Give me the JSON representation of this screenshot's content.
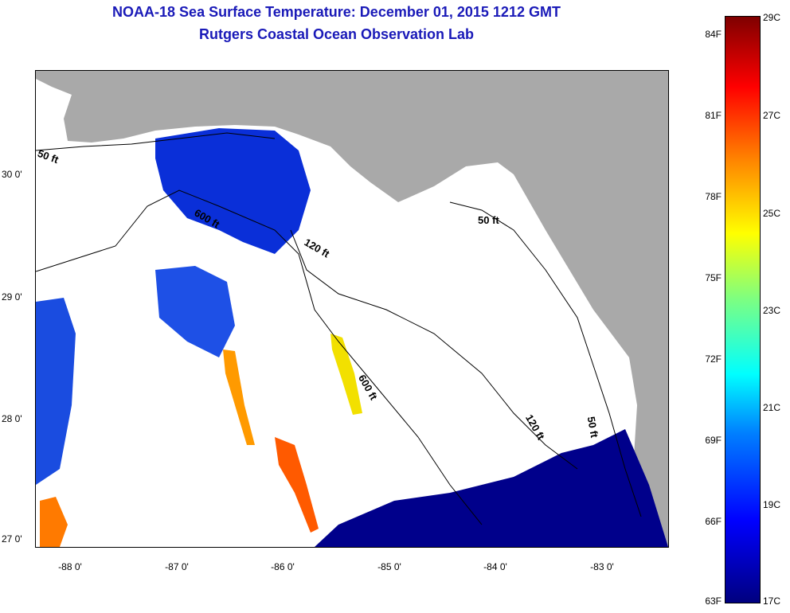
{
  "title": {
    "line1": "NOAA-18 Sea Surface Temperature:  December 01, 2015 1212 GMT",
    "line2": "Rutgers Coastal Ocean Observation Lab"
  },
  "map": {
    "lat_labels": [
      "30 0'",
      "29 0'",
      "28 0'",
      "27 0'"
    ],
    "lon_labels": [
      "-88 0'",
      "-87 0'",
      "-86 0'",
      "-85 0'",
      "-84 0'",
      "-83 0'"
    ],
    "depth_labels": [
      "50 ft",
      "600 ft",
      "120 ft",
      "50 ft",
      "600 ft",
      "120 ft",
      "50 ft"
    ],
    "colors": {
      "land": "#a9a9a9",
      "cloud": "#ffffff",
      "cold": "#00008b",
      "warm": "#ff6000"
    }
  },
  "colorbar": {
    "fahrenheit": [
      "84F",
      "81F",
      "78F",
      "75F",
      "72F",
      "69F",
      "66F",
      "63F"
    ],
    "celsius": [
      "29C",
      "27C",
      "25C",
      "23C",
      "21C",
      "19C",
      "17C"
    ]
  }
}
